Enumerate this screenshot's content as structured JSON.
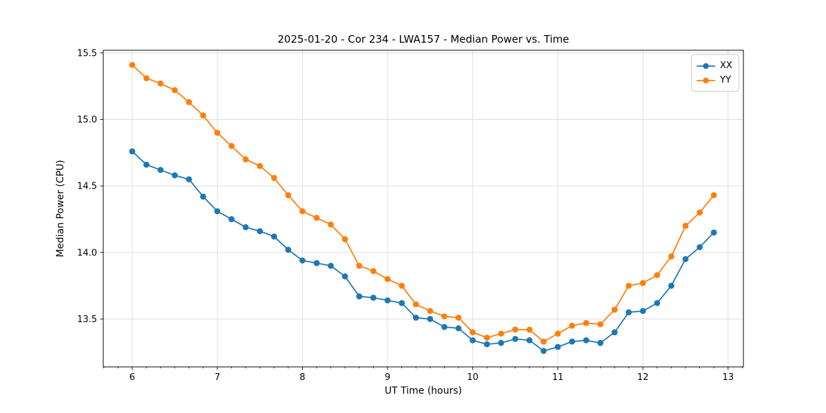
{
  "chart_data": {
    "type": "line",
    "title": "2025-01-20 - Cor 234 - LWA157 - Median Power vs. Time",
    "xlabel": "UT Time (hours)",
    "ylabel": "Median Power (CPU)",
    "xlim": [
      5.66,
      13.18
    ],
    "ylim": [
      13.14,
      15.52
    ],
    "xticks": [
      6,
      7,
      8,
      9,
      10,
      11,
      12,
      13
    ],
    "yticks": [
      13.5,
      14.0,
      14.5,
      15.0,
      15.5
    ],
    "minor_xtick_step": 0.1666667,
    "grid": true,
    "grid_color": "#dcdcdc",
    "legend_position": "upper right",
    "x": [
      6.0,
      6.167,
      6.333,
      6.5,
      6.667,
      6.833,
      7.0,
      7.167,
      7.333,
      7.5,
      7.667,
      7.833,
      8.0,
      8.167,
      8.333,
      8.5,
      8.667,
      8.833,
      9.0,
      9.167,
      9.333,
      9.5,
      9.667,
      9.833,
      10.0,
      10.167,
      10.333,
      10.5,
      10.667,
      10.833,
      11.0,
      11.167,
      11.333,
      11.5,
      11.667,
      11.833,
      12.0,
      12.167,
      12.333,
      12.5,
      12.667,
      12.833
    ],
    "series": [
      {
        "name": "XX",
        "color": "#1f77b4",
        "values": [
          14.76,
          14.66,
          14.62,
          14.58,
          14.55,
          14.42,
          14.31,
          14.25,
          14.19,
          14.16,
          14.12,
          14.02,
          13.94,
          13.92,
          13.9,
          13.82,
          13.67,
          13.66,
          13.64,
          13.62,
          13.51,
          13.5,
          13.44,
          13.43,
          13.34,
          13.31,
          13.32,
          13.35,
          13.34,
          13.26,
          13.29,
          13.33,
          13.34,
          13.32,
          13.4,
          13.55,
          13.56,
          13.62,
          13.75,
          13.95,
          14.04,
          14.15
        ]
      },
      {
        "name": "YY",
        "color": "#ff7f0e",
        "values": [
          15.41,
          15.31,
          15.27,
          15.22,
          15.13,
          15.03,
          14.9,
          14.8,
          14.7,
          14.65,
          14.56,
          14.43,
          14.31,
          14.26,
          14.21,
          14.1,
          13.9,
          13.86,
          13.8,
          13.75,
          13.61,
          13.56,
          13.52,
          13.51,
          13.4,
          13.36,
          13.39,
          13.42,
          13.42,
          13.33,
          13.39,
          13.45,
          13.47,
          13.46,
          13.57,
          13.75,
          13.77,
          13.83,
          13.97,
          14.2,
          14.3,
          14.43
        ]
      }
    ]
  }
}
